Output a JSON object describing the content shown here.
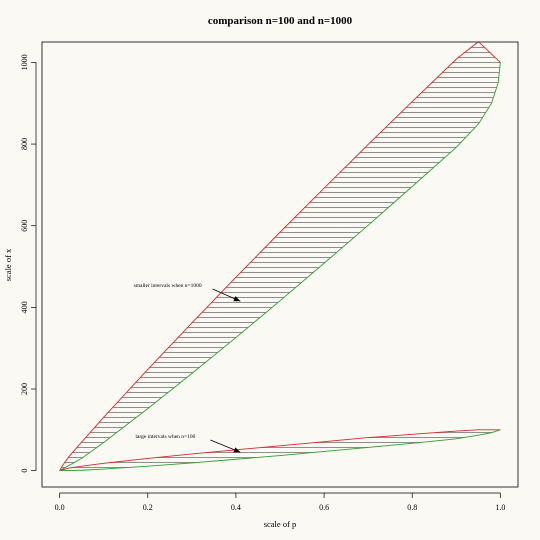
{
  "chart_data": {
    "type": "line",
    "title": "comparison n=100 and n=1000",
    "xlabel": "scale of p",
    "ylabel": "scale of x",
    "xlim": [
      -0.04,
      1.04
    ],
    "ylim": [
      -40,
      1050
    ],
    "xticks": [
      0.0,
      0.2,
      0.4,
      0.6,
      0.8,
      1.0
    ],
    "xtick_labels": [
      "0.0",
      "0.2",
      "0.4",
      "0.6",
      "0.8",
      "1.0"
    ],
    "yticks": [
      0,
      200,
      400,
      600,
      800,
      1000
    ],
    "ytick_labels": [
      "0",
      "200",
      "400",
      "600",
      "800",
      "1000"
    ],
    "grid": false,
    "series": [
      {
        "role": "n=1000 upper bound",
        "color": "#d62728",
        "x": [
          0,
          0.005,
          0.02,
          0.05,
          0.1,
          0.2,
          0.3,
          0.4,
          0.5,
          0.6,
          0.7,
          0.8,
          0.9,
          0.95,
          1.0
        ],
        "y": [
          0,
          10,
          33,
          70,
          131,
          248,
          362,
          474,
          584,
          692,
          799,
          904,
          1008,
          1051,
          1000
        ]
      },
      {
        "role": "n=1000 lower bound",
        "color": "#2ca02c",
        "x": [
          0,
          0.05,
          0.1,
          0.2,
          0.3,
          0.4,
          0.5,
          0.6,
          0.7,
          0.8,
          0.9,
          0.95,
          0.98,
          0.995,
          1.0
        ],
        "y": [
          0,
          30,
          69,
          152,
          238,
          326,
          416,
          508,
          601,
          696,
          792,
          849,
          900,
          950,
          1000
        ]
      },
      {
        "role": "n=100 upper bound",
        "color": "#d62728",
        "x": [
          0,
          0.02,
          0.05,
          0.1,
          0.2,
          0.3,
          0.4,
          0.5,
          0.6,
          0.7,
          0.8,
          0.9,
          0.95,
          1.0
        ],
        "y": [
          0,
          6,
          11,
          18,
          30,
          41,
          51,
          61,
          71,
          81,
          89,
          97,
          100,
          100
        ]
      },
      {
        "role": "n=100 lower bound",
        "color": "#2ca02c",
        "x": [
          0,
          0.05,
          0.1,
          0.2,
          0.3,
          0.4,
          0.5,
          0.6,
          0.7,
          0.8,
          0.9,
          0.95,
          0.98,
          1.0
        ],
        "y": [
          0,
          1,
          4,
          11,
          19,
          28,
          37,
          47,
          57,
          67,
          78,
          87,
          93,
          100
        ]
      }
    ],
    "annotations": [
      {
        "text": "smaller intervals when n=1000",
        "x": 0.245,
        "y": 450,
        "arrow_to": [
          0.41,
          415
        ]
      },
      {
        "text": "large intervals when n=100",
        "x": 0.24,
        "y": 80,
        "arrow_to": [
          0.41,
          45
        ]
      }
    ]
  }
}
